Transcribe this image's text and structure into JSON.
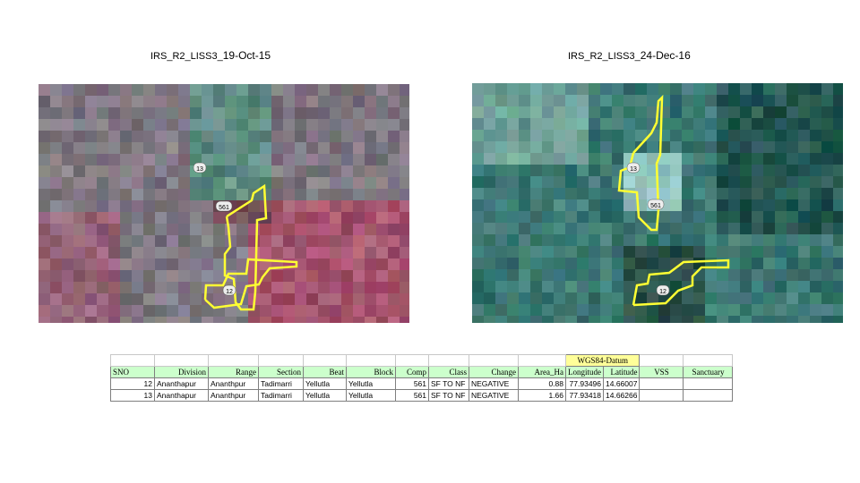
{
  "left_panel": {
    "title_prefix": "IRS_R2_LISS3_",
    "title_date": "19-Oct-15",
    "labels": {
      "a": "13",
      "b": "561",
      "c": "12"
    }
  },
  "right_panel": {
    "title_prefix": "IRS_R2_LISS3_",
    "title_date": "24-Dec-16",
    "labels": {
      "a": "13",
      "b": "561",
      "c": "12"
    }
  },
  "table": {
    "wgs_label": "WGS84-Datum",
    "headers": [
      "SNO",
      "Division",
      "Range",
      "Section",
      "Beat",
      "Block",
      "Comp",
      "Class",
      "Change",
      "Area_Ha",
      "Longitude",
      "Latitude",
      "VSS",
      "Sanctuary"
    ],
    "rows": [
      [
        "12",
        "Ananthapur",
        "Ananthpur",
        "Tadimarri",
        "Yellutla",
        "Yellutla",
        "561",
        "SF TO NF",
        "NEGATIVE",
        "0.88",
        "77.93496",
        "14.66007",
        "",
        ""
      ],
      [
        "13",
        "Ananthapur",
        "Ananthpur",
        "Tadimarri",
        "Yellutla",
        "Yellutla",
        "561",
        "SF TO NF",
        "NEGATIVE",
        "1.66",
        "77.93418",
        "14.66266",
        "",
        ""
      ]
    ]
  }
}
